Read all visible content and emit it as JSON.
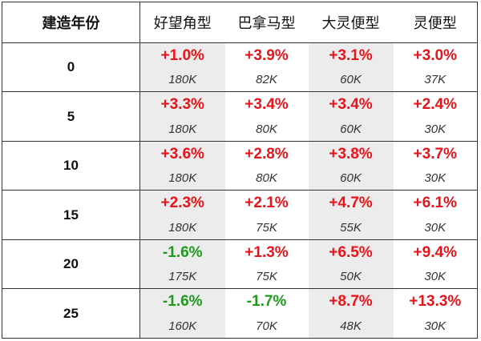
{
  "table": {
    "header": {
      "year": "建造年份",
      "columns": [
        "好望角型",
        "巴拿马型",
        "大灵便型",
        "灵便型"
      ]
    },
    "rows": [
      {
        "year": "0",
        "cells": [
          {
            "pct": "+1.0%",
            "dir": "up",
            "price": "180K"
          },
          {
            "pct": "+3.9%",
            "dir": "up",
            "price": "82K"
          },
          {
            "pct": "+3.1%",
            "dir": "up",
            "price": "60K"
          },
          {
            "pct": "+3.0%",
            "dir": "up",
            "price": "37K"
          }
        ]
      },
      {
        "year": "5",
        "cells": [
          {
            "pct": "+3.3%",
            "dir": "up",
            "price": "180K"
          },
          {
            "pct": "+3.4%",
            "dir": "up",
            "price": "80K"
          },
          {
            "pct": "+3.4%",
            "dir": "up",
            "price": "60K"
          },
          {
            "pct": "+2.4%",
            "dir": "up",
            "price": "30K"
          }
        ]
      },
      {
        "year": "10",
        "cells": [
          {
            "pct": "+3.6%",
            "dir": "up",
            "price": "180K"
          },
          {
            "pct": "+2.8%",
            "dir": "up",
            "price": "80K"
          },
          {
            "pct": "+3.8%",
            "dir": "up",
            "price": "60K"
          },
          {
            "pct": "+3.7%",
            "dir": "up",
            "price": "30K"
          }
        ]
      },
      {
        "year": "15",
        "cells": [
          {
            "pct": "+2.3%",
            "dir": "up",
            "price": "180K"
          },
          {
            "pct": "+2.1%",
            "dir": "up",
            "price": "75K"
          },
          {
            "pct": "+4.7%",
            "dir": "up",
            "price": "55K"
          },
          {
            "pct": "+6.1%",
            "dir": "up",
            "price": "30K"
          }
        ]
      },
      {
        "year": "20",
        "cells": [
          {
            "pct": "-1.6%",
            "dir": "down",
            "price": "175K"
          },
          {
            "pct": "+1.3%",
            "dir": "up",
            "price": "75K"
          },
          {
            "pct": "+6.5%",
            "dir": "up",
            "price": "50K"
          },
          {
            "pct": "+9.4%",
            "dir": "up",
            "price": "30K"
          }
        ]
      },
      {
        "year": "25",
        "cells": [
          {
            "pct": "-1.6%",
            "dir": "down",
            "price": "160K"
          },
          {
            "pct": "-1.7%",
            "dir": "down",
            "price": "70K"
          },
          {
            "pct": "+8.7%",
            "dir": "up",
            "price": "48K"
          },
          {
            "pct": "+13.3%",
            "dir": "up",
            "price": "30K"
          }
        ]
      }
    ]
  },
  "colors": {
    "up": "#e8141b",
    "down": "#1e9a1e",
    "shade": "#ececec"
  }
}
